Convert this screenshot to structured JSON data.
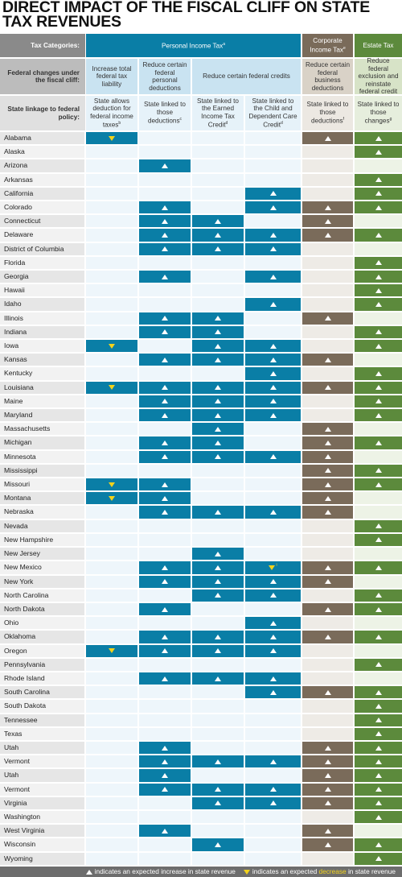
{
  "title": "DIRECT IMPACT OF THE FISCAL CLIFF ON STATE TAX REVENUES",
  "header": {
    "row1_label": "Tax Categories:",
    "row2_label": "Federal changes under the fiscal cliff:",
    "row3_label": "State linkage to federal policy:",
    "personal": "Personal Income Tax",
    "personal_note": "a",
    "corporate": "Corporate Income Tax",
    "corporate_note": "e",
    "estate": "Estate Tax",
    "fed_1": "Increase total federal tax liability",
    "fed_2": "Reduce certain federal personal deductions",
    "fed_3": "Reduce certain federal credits",
    "fed_4": "Reduce certain federal business deductions",
    "fed_5": "Reduce federal exclusion and reinstate federal credit",
    "link_1": "State allows deduction for federal income taxes",
    "link_1_note": "b",
    "link_2": "State linked to those deductions",
    "link_2_note": "c",
    "link_3": "State linked to the Earned Income Tax Credit",
    "link_3_note": "d",
    "link_4": "State linked to the Child and Dependent Care Credit",
    "link_4_note": "d",
    "link_5": "State linked to those deductions",
    "link_5_note": "f",
    "link_6": "State linked to those changes",
    "link_6_note": "g"
  },
  "colors": {
    "personal": "#0a7ea6",
    "corporate": "#7a6b5a",
    "estate": "#5c8a3c",
    "decrease": "#f2d21c"
  },
  "columns": [
    "deduct_fed_tax",
    "personal_deductions",
    "eitc",
    "child_care_credit",
    "business_deductions",
    "estate_changes"
  ],
  "states": [
    {
      "name": "Alabama",
      "cells": [
        "down",
        "",
        "",
        "",
        "up",
        "up"
      ]
    },
    {
      "name": "Alaska",
      "cells": [
        "",
        "",
        "",
        "",
        "",
        "up"
      ]
    },
    {
      "name": "Arizona",
      "cells": [
        "",
        "up",
        "",
        "",
        "",
        ""
      ]
    },
    {
      "name": "Arkansas",
      "cells": [
        "",
        "",
        "",
        "",
        "",
        "up"
      ]
    },
    {
      "name": "California",
      "cells": [
        "",
        "",
        "",
        "up",
        "",
        "up"
      ]
    },
    {
      "name": "Colorado",
      "cells": [
        "",
        "up",
        "",
        "up",
        "up",
        "up"
      ]
    },
    {
      "name": "Connecticut",
      "cells": [
        "",
        "up",
        "up",
        "",
        "up",
        ""
      ]
    },
    {
      "name": "Delaware",
      "cells": [
        "",
        "up",
        "up",
        "up",
        "up",
        "up"
      ]
    },
    {
      "name": "District of Columbia",
      "cells": [
        "",
        "up",
        "up",
        "up",
        "",
        ""
      ]
    },
    {
      "name": "Florida",
      "cells": [
        "",
        "",
        "",
        "",
        "",
        "up"
      ]
    },
    {
      "name": "Georgia",
      "cells": [
        "",
        "up",
        "",
        "up",
        "",
        "up"
      ]
    },
    {
      "name": "Hawaii",
      "cells": [
        "",
        "",
        "",
        "",
        "",
        "up"
      ]
    },
    {
      "name": "Idaho",
      "cells": [
        "",
        "",
        "",
        "up",
        "",
        "up"
      ]
    },
    {
      "name": "Illinois",
      "cells": [
        "",
        "up",
        "up",
        "",
        "up",
        ""
      ]
    },
    {
      "name": "Indiana",
      "cells": [
        "",
        "up",
        "up",
        "",
        "",
        "up"
      ]
    },
    {
      "name": "Iowa",
      "cells": [
        "down",
        "",
        "up",
        "up",
        "",
        "up"
      ]
    },
    {
      "name": "Kansas",
      "cells": [
        "",
        "up",
        "up",
        "up",
        "up",
        ""
      ]
    },
    {
      "name": "Kentucky",
      "cells": [
        "",
        "",
        "",
        "up",
        "",
        "up"
      ]
    },
    {
      "name": "Louisiana",
      "cells": [
        "down",
        "up",
        "up",
        "up",
        "up",
        "up"
      ]
    },
    {
      "name": "Maine",
      "cells": [
        "",
        "up",
        "up",
        "up",
        "",
        "up"
      ]
    },
    {
      "name": "Maryland",
      "cells": [
        "",
        "up",
        "up",
        "up",
        "",
        "up"
      ]
    },
    {
      "name": "Massachusetts",
      "cells": [
        "",
        "",
        "up",
        "",
        "up",
        ""
      ]
    },
    {
      "name": "Michigan",
      "cells": [
        "",
        "up",
        "up",
        "",
        "up",
        "up"
      ]
    },
    {
      "name": "Minnesota",
      "cells": [
        "",
        "up",
        "up",
        "up",
        "up",
        ""
      ]
    },
    {
      "name": "Mississippi",
      "cells": [
        "",
        "",
        "",
        "",
        "up",
        "up"
      ]
    },
    {
      "name": "Missouri",
      "cells": [
        "down",
        "up",
        "",
        "",
        "up",
        "up"
      ]
    },
    {
      "name": "Montana",
      "cells": [
        "down",
        "up",
        "",
        "",
        "up",
        ""
      ]
    },
    {
      "name": "Nebraska",
      "cells": [
        "",
        "up",
        "up",
        "up",
        "up",
        ""
      ]
    },
    {
      "name": "Nevada",
      "cells": [
        "",
        "",
        "",
        "",
        "",
        "up"
      ]
    },
    {
      "name": "New Hampshire",
      "cells": [
        "",
        "",
        "",
        "",
        "",
        "up"
      ]
    },
    {
      "name": "New Jersey",
      "cells": [
        "",
        "",
        "up",
        "",
        "",
        ""
      ]
    },
    {
      "name": "New Mexico",
      "cells": [
        "",
        "up",
        "up",
        "down",
        "up",
        "up"
      ],
      "marks": {
        "3": "i"
      }
    },
    {
      "name": "New York",
      "cells": [
        "",
        "up",
        "up",
        "up",
        "up",
        ""
      ]
    },
    {
      "name": "North Carolina",
      "cells": [
        "",
        "",
        "up",
        "up",
        "",
        "up"
      ]
    },
    {
      "name": "North Dakota",
      "cells": [
        "",
        "up",
        "",
        "",
        "up",
        "up"
      ]
    },
    {
      "name": "Ohio",
      "cells": [
        "",
        "",
        "",
        "up",
        "",
        ""
      ]
    },
    {
      "name": "Oklahoma",
      "cells": [
        "",
        "up",
        "up",
        "up",
        "up",
        "up"
      ]
    },
    {
      "name": "Oregon",
      "cells": [
        "down",
        "up",
        "up",
        "up",
        "",
        ""
      ]
    },
    {
      "name": "Pennsylvania",
      "cells": [
        "",
        "",
        "",
        "",
        "",
        "up"
      ]
    },
    {
      "name": "Rhode Island",
      "cells": [
        "",
        "up",
        "up",
        "up",
        "",
        ""
      ]
    },
    {
      "name": "South Carolina",
      "cells": [
        "",
        "",
        "",
        "up",
        "up",
        "up"
      ]
    },
    {
      "name": "South Dakota",
      "cells": [
        "",
        "",
        "",
        "",
        "",
        "up"
      ]
    },
    {
      "name": "Tennessee",
      "cells": [
        "",
        "",
        "",
        "",
        "",
        "up"
      ]
    },
    {
      "name": "Texas",
      "cells": [
        "",
        "",
        "",
        "",
        "",
        "up"
      ]
    },
    {
      "name": "Utah",
      "cells": [
        "",
        "up",
        "",
        "",
        "up",
        "up"
      ]
    },
    {
      "name": "Vermont",
      "cells": [
        "",
        "up",
        "up",
        "up",
        "up",
        "up"
      ]
    },
    {
      "name": "Utah",
      "cells": [
        "",
        "up",
        "",
        "",
        "up",
        "up"
      ]
    },
    {
      "name": "Vermont",
      "cells": [
        "",
        "up",
        "up",
        "up",
        "up",
        "up"
      ]
    },
    {
      "name": "Virginia",
      "cells": [
        "",
        "",
        "up",
        "up",
        "up",
        "up"
      ]
    },
    {
      "name": "Washington",
      "cells": [
        "",
        "",
        "",
        "",
        "",
        "up"
      ]
    },
    {
      "name": "West Virginia",
      "cells": [
        "",
        "up",
        "",
        "",
        "up",
        ""
      ]
    },
    {
      "name": "Wisconsin",
      "cells": [
        "",
        "",
        "up",
        "",
        "up",
        "up"
      ]
    },
    {
      "name": "Wyoming",
      "cells": [
        "",
        "",
        "",
        "",
        "",
        "up"
      ]
    }
  ],
  "legend": {
    "up_text": "indicates an expected increase in state revenue",
    "down_pre": "indicates an expected",
    "down_word": "decrease",
    "down_post": "in state revenue"
  }
}
